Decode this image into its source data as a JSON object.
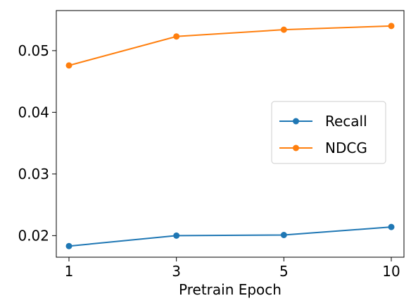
{
  "chart_data": {
    "type": "line",
    "x": [
      "1",
      "3",
      "5",
      "10"
    ],
    "xlabel": "Pretrain Epoch",
    "ylabel": "",
    "ylim": [
      0.0165,
      0.0565
    ],
    "yticks": [
      0.02,
      0.03,
      0.04,
      0.05
    ],
    "ytick_labels": [
      "0.02",
      "0.03",
      "0.04",
      "0.05"
    ],
    "grid": false,
    "legend_position": "center-right",
    "series": [
      {
        "name": "Recall",
        "color": "#1f77b4",
        "marker": "circle",
        "values": [
          0.0183,
          0.02,
          0.0201,
          0.0214
        ]
      },
      {
        "name": "NDCG",
        "color": "#ff7f0e",
        "marker": "circle",
        "values": [
          0.0476,
          0.0523,
          0.0534,
          0.054
        ]
      }
    ]
  }
}
